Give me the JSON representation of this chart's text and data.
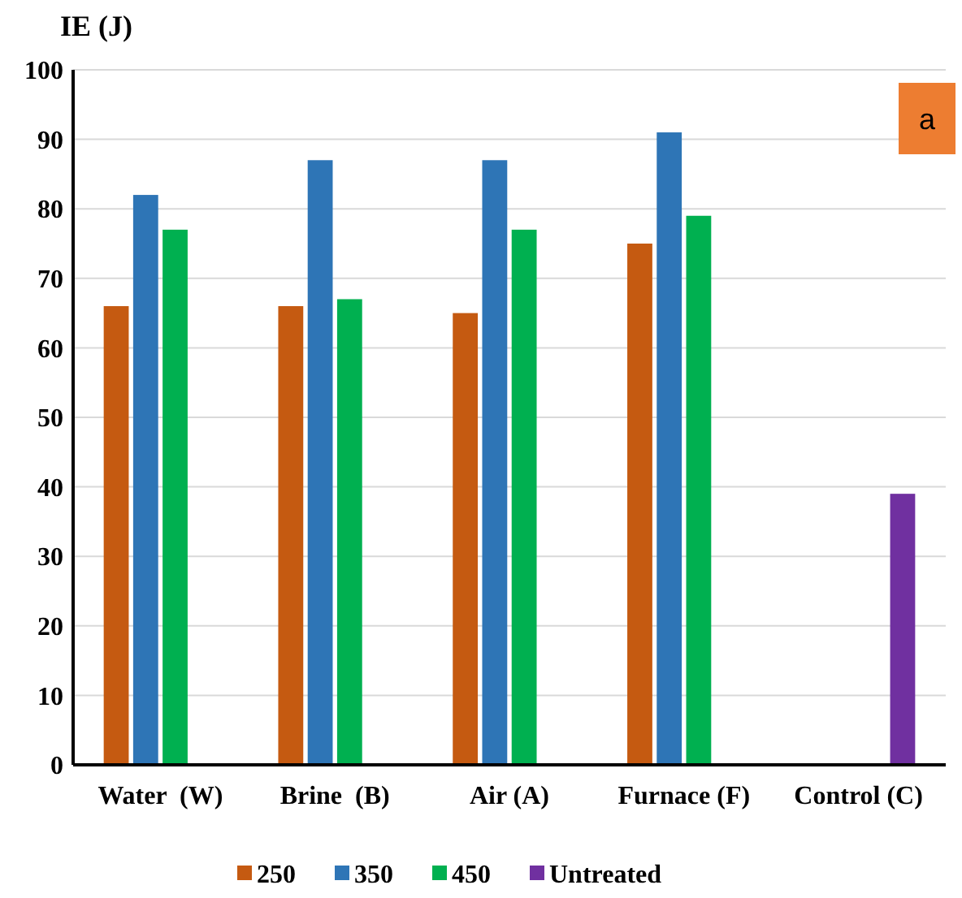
{
  "chart_data": {
    "type": "bar",
    "ylabel": "IE (J)",
    "categories": [
      "Water  (W)",
      "Brine  (B)",
      "Air (A)",
      "Furnace (F)",
      "Control (C)"
    ],
    "series": [
      {
        "name": "250",
        "color": "#c55a11",
        "values": [
          66,
          66,
          65,
          75,
          null
        ]
      },
      {
        "name": "350",
        "color": "#2e75b6",
        "values": [
          82,
          87,
          87,
          91,
          null
        ]
      },
      {
        "name": "450",
        "color": "#00b050",
        "values": [
          77,
          67,
          77,
          79,
          null
        ]
      },
      {
        "name": "Untreated",
        "color": "#7030a0",
        "values": [
          null,
          null,
          null,
          null,
          39
        ]
      }
    ],
    "ylim": [
      0,
      100
    ],
    "yticks": [
      0,
      10,
      20,
      30,
      40,
      50,
      60,
      70,
      80,
      90,
      100
    ],
    "grid": "y",
    "legend": "bottom",
    "annotations": [
      "a"
    ]
  }
}
